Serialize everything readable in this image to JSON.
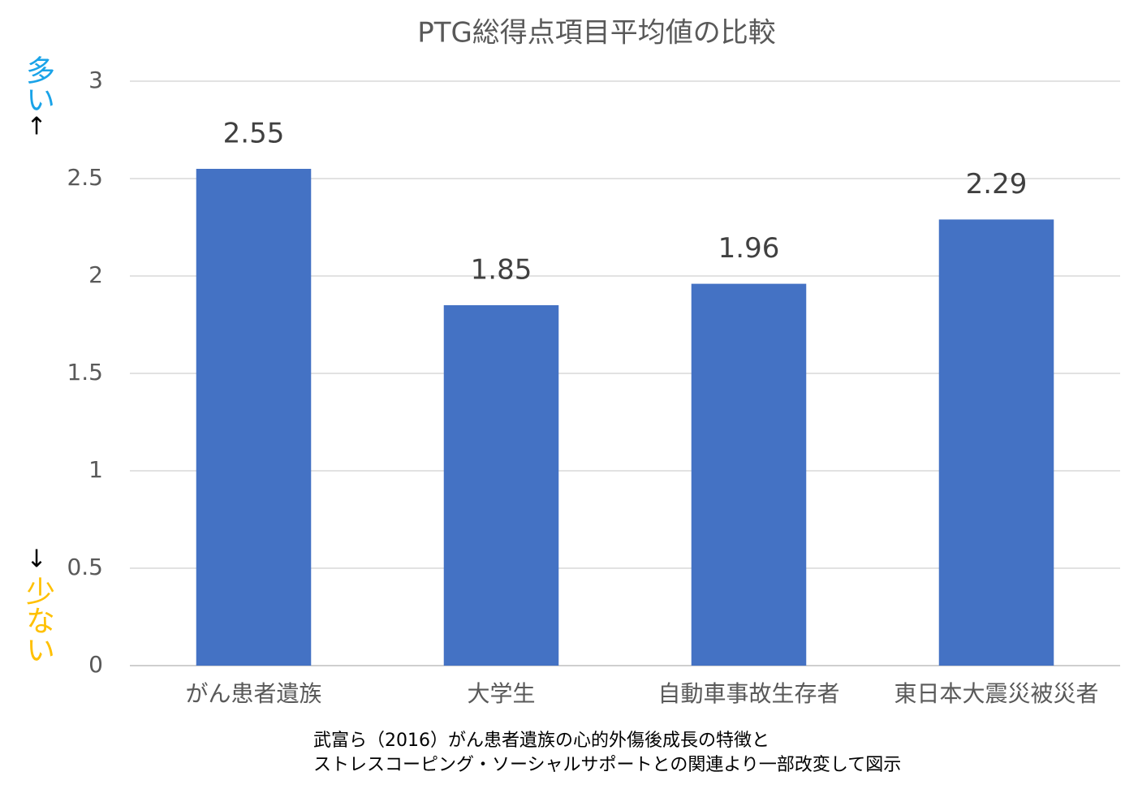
{
  "chart_data": {
    "type": "bar",
    "title": "PTG総得点項目平均値の比較",
    "categories": [
      "がん患者遺族",
      "大学生",
      "自動車事故生存者",
      "東日本大震災被災者"
    ],
    "values": [
      2.55,
      1.85,
      1.96,
      2.29
    ],
    "color": "#4472c4",
    "ylim": [
      0,
      3
    ],
    "yticks": [
      0,
      0.5,
      1,
      1.5,
      2,
      2.5,
      3
    ],
    "grid": true,
    "annotations": [
      {
        "text": "多い",
        "color": "#1aa3e8"
      },
      {
        "text": "↑",
        "color": "#000000"
      },
      {
        "text": "↓",
        "color": "#000000"
      },
      {
        "text": "少ない",
        "color": "#ffc000"
      }
    ],
    "source": [
      "武富ら（2016）がん患者遺族の心的外傷後成長の特徴と",
      "ストレスコーピング・ソーシャルサポートとの関連より一部改変して図示"
    ]
  }
}
